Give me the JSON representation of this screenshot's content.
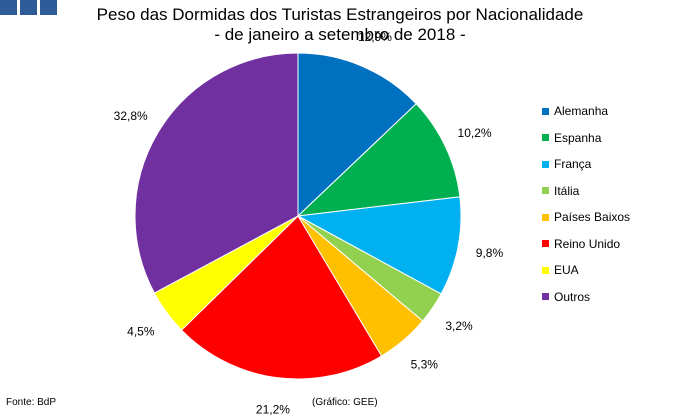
{
  "header": {
    "logo_icon": "gee-logo-squares"
  },
  "chart_data": {
    "type": "pie",
    "title": "Peso das Dormidas dos Turistas Estrangeiros por Nacionalidade",
    "subtitle": "- de janeiro a setembro de 2018 -",
    "slices": [
      {
        "label": "Alemanha",
        "value": 12.9,
        "data_label": "12,9%",
        "color": "#0070c0"
      },
      {
        "label": "Espanha",
        "value": 10.2,
        "data_label": "10,2%",
        "color": "#00b050"
      },
      {
        "label": "França",
        "value": 9.8,
        "data_label": "9,8%",
        "color": "#00b0f0"
      },
      {
        "label": "Itália",
        "value": 3.2,
        "data_label": "3,2%",
        "color": "#92d050"
      },
      {
        "label": "Países Baixos",
        "value": 5.3,
        "data_label": "5,3%",
        "color": "#ffc000"
      },
      {
        "label": "Reino Unido",
        "value": 21.2,
        "data_label": "21,2%",
        "color": "#ff0000"
      },
      {
        "label": "EUA",
        "value": 4.5,
        "data_label": "4,5%",
        "color": "#ffff00"
      },
      {
        "label": "Outros",
        "value": 32.8,
        "data_label": "32,8%",
        "color": "#7030a0"
      }
    ],
    "legend_position": "right"
  },
  "footer": {
    "source": "Fonte: BdP",
    "credit": "(Gráfico: GEE)"
  }
}
